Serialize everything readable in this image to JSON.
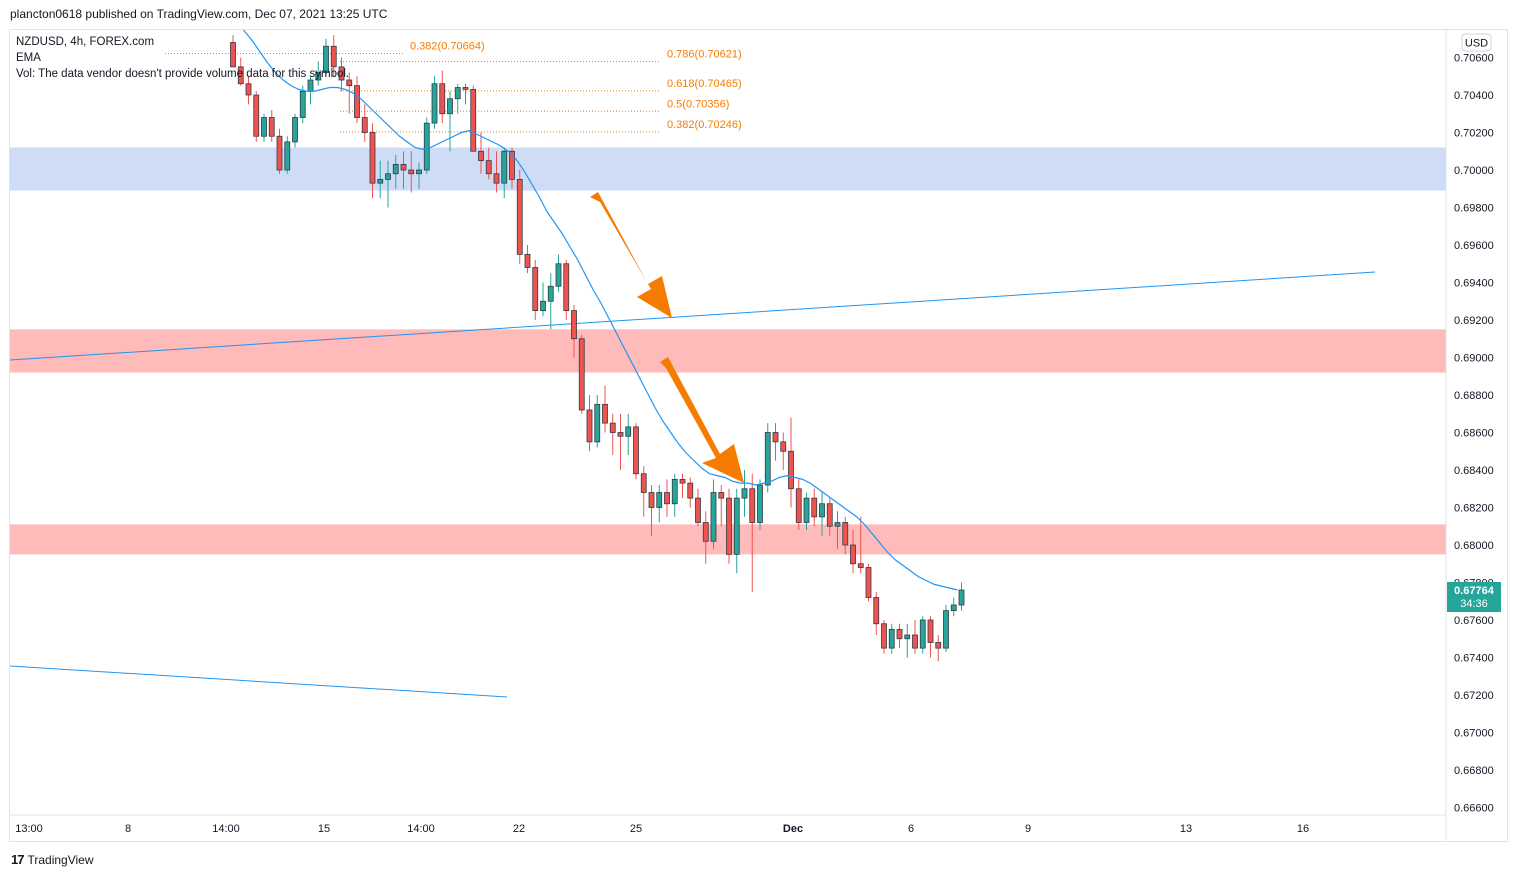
{
  "header": {
    "publish_text": "plancton0618 published on TradingView.com, Dec 07, 2021 13:25 UTC"
  },
  "legend": {
    "symbol": "NZDUSD, 4h, FOREX.com",
    "ema": "EMA",
    "vol": "Vol: The data vendor doesn't provide volume data for this symbol."
  },
  "footer": {
    "brand": "TradingView",
    "logo_glyph": "17"
  },
  "colors": {
    "bull": "#26a69a",
    "bear": "#ef5350",
    "candle_border_dark": "#363a45",
    "ema": "#2196f3",
    "fib": "#f57c00",
    "arrow": "#f57c00",
    "zone_blue": "#cfdcf6",
    "zone_red": "#ffbaba",
    "last_price_bg": "#26a69a"
  },
  "chart_data": {
    "type": "candlestick",
    "symbol": "NZDUSD",
    "timeframe": "4h",
    "currency": "USD",
    "ylim": [
      0.6655,
      0.708
    ],
    "y_ticks": [
      "0.70600",
      "0.70400",
      "0.70200",
      "0.70000",
      "0.69800",
      "0.69600",
      "0.69400",
      "0.69200",
      "0.69000",
      "0.68800",
      "0.68600",
      "0.68400",
      "0.68200",
      "0.68000",
      "0.67800",
      "0.67600",
      "0.67400",
      "0.67200",
      "0.67000",
      "0.66800",
      "0.66600"
    ],
    "x_ticks": [
      "13:00",
      "8",
      "14:00",
      "15",
      "14:00",
      "22",
      "25",
      "Dec",
      "6",
      "9",
      "13",
      "16"
    ],
    "last_price": "0.67764",
    "countdown": "34:36",
    "zones": [
      {
        "color": "blue",
        "from": 0.6989,
        "to": 0.7012
      },
      {
        "color": "red",
        "from": 0.6892,
        "to": 0.6915
      },
      {
        "color": "red",
        "from": 0.6795,
        "to": 0.6811
      }
    ],
    "fib_labels": [
      {
        "label": "0.382(0.70664)",
        "value": 0.70664
      },
      {
        "label": "0.786(0.70621)",
        "value": 0.70621
      },
      {
        "label": "0.618(0.70465)",
        "value": 0.70465
      },
      {
        "label": "0.5(0.70356)",
        "value": 0.70356
      },
      {
        "label": "0.382(0.70246)",
        "value": 0.70246
      }
    ],
    "candles": [
      [
        0.7068,
        0.7072,
        0.7055,
        0.7055
      ],
      [
        0.7055,
        0.706,
        0.7045,
        0.7046
      ],
      [
        0.7046,
        0.705,
        0.7035,
        0.704
      ],
      [
        0.704,
        0.7042,
        0.7015,
        0.7018
      ],
      [
        0.7018,
        0.703,
        0.7015,
        0.7028
      ],
      [
        0.7028,
        0.7032,
        0.7015,
        0.7018
      ],
      [
        0.7018,
        0.7022,
        0.6998,
        0.7
      ],
      [
        0.7,
        0.7018,
        0.6998,
        0.7015
      ],
      [
        0.7015,
        0.703,
        0.7012,
        0.7028
      ],
      [
        0.7028,
        0.7045,
        0.7025,
        0.7042
      ],
      [
        0.7042,
        0.705,
        0.7035,
        0.7048
      ],
      [
        0.7048,
        0.7058,
        0.7045,
        0.7052
      ],
      [
        0.7052,
        0.707,
        0.705,
        0.7066
      ],
      [
        0.7066,
        0.7072,
        0.705,
        0.7055
      ],
      [
        0.7055,
        0.706,
        0.7042,
        0.7048
      ],
      [
        0.7048,
        0.7052,
        0.703,
        0.7045
      ],
      [
        0.7045,
        0.705,
        0.7025,
        0.7028
      ],
      [
        0.7028,
        0.7035,
        0.7015,
        0.702
      ],
      [
        0.702,
        0.7025,
        0.6985,
        0.6993
      ],
      [
        0.6993,
        0.7005,
        0.6985,
        0.6995
      ],
      [
        0.6995,
        0.7005,
        0.698,
        0.6998
      ],
      [
        0.6998,
        0.7008,
        0.699,
        0.7003
      ],
      [
        0.7003,
        0.701,
        0.699,
        0.7
      ],
      [
        0.7,
        0.701,
        0.6988,
        0.6998
      ],
      [
        0.6998,
        0.7004,
        0.699,
        0.7
      ],
      [
        0.7,
        0.7028,
        0.6998,
        0.7025
      ],
      [
        0.7025,
        0.705,
        0.7022,
        0.7046
      ],
      [
        0.7046,
        0.7053,
        0.7025,
        0.703
      ],
      [
        0.703,
        0.7042,
        0.701,
        0.7038
      ],
      [
        0.7038,
        0.7046,
        0.703,
        0.7044
      ],
      [
        0.7044,
        0.7046,
        0.7035,
        0.7043
      ],
      [
        0.7043,
        0.7045,
        0.701,
        0.701
      ],
      [
        0.701,
        0.702,
        0.6998,
        0.7005
      ],
      [
        0.7005,
        0.7012,
        0.6995,
        0.6998
      ],
      [
        0.6998,
        0.701,
        0.6988,
        0.6993
      ],
      [
        0.6993,
        0.7012,
        0.6985,
        0.701
      ],
      [
        0.701,
        0.7012,
        0.699,
        0.6995
      ],
      [
        0.6995,
        0.7,
        0.695,
        0.6955
      ],
      [
        0.6955,
        0.696,
        0.6945,
        0.6948
      ],
      [
        0.6948,
        0.6952,
        0.692,
        0.6925
      ],
      [
        0.6925,
        0.694,
        0.6922,
        0.693
      ],
      [
        0.693,
        0.6945,
        0.6915,
        0.6938
      ],
      [
        0.6938,
        0.6955,
        0.6935,
        0.695
      ],
      [
        0.695,
        0.6952,
        0.692,
        0.6925
      ],
      [
        0.6925,
        0.6928,
        0.69,
        0.691
      ],
      [
        0.691,
        0.6912,
        0.687,
        0.6872
      ],
      [
        0.6872,
        0.688,
        0.685,
        0.6855
      ],
      [
        0.6855,
        0.688,
        0.6852,
        0.6875
      ],
      [
        0.6875,
        0.6885,
        0.686,
        0.6865
      ],
      [
        0.6865,
        0.687,
        0.6848,
        0.686
      ],
      [
        0.686,
        0.687,
        0.684,
        0.6858
      ],
      [
        0.6858,
        0.687,
        0.6848,
        0.6863
      ],
      [
        0.6863,
        0.6865,
        0.6835,
        0.6838
      ],
      [
        0.6838,
        0.6842,
        0.6815,
        0.6828
      ],
      [
        0.6828,
        0.6832,
        0.6805,
        0.682
      ],
      [
        0.682,
        0.6832,
        0.6812,
        0.6828
      ],
      [
        0.6828,
        0.6835,
        0.6815,
        0.6822
      ],
      [
        0.6822,
        0.6838,
        0.6815,
        0.6835
      ],
      [
        0.6835,
        0.6838,
        0.6825,
        0.6833
      ],
      [
        0.6833,
        0.6836,
        0.682,
        0.6825
      ],
      [
        0.6825,
        0.683,
        0.681,
        0.6812
      ],
      [
        0.6812,
        0.6818,
        0.679,
        0.6802
      ],
      [
        0.6802,
        0.6835,
        0.6798,
        0.6828
      ],
      [
        0.6828,
        0.6832,
        0.681,
        0.6825
      ],
      [
        0.6825,
        0.683,
        0.679,
        0.6795
      ],
      [
        0.6795,
        0.683,
        0.6785,
        0.6825
      ],
      [
        0.6825,
        0.684,
        0.6815,
        0.683
      ],
      [
        0.683,
        0.6838,
        0.6775,
        0.6812
      ],
      [
        0.6812,
        0.6835,
        0.6808,
        0.6832
      ],
      [
        0.6832,
        0.6865,
        0.6828,
        0.686
      ],
      [
        0.686,
        0.6865,
        0.6845,
        0.6855
      ],
      [
        0.6855,
        0.686,
        0.684,
        0.685
      ],
      [
        0.685,
        0.6868,
        0.682,
        0.683
      ],
      [
        0.683,
        0.6835,
        0.6808,
        0.6812
      ],
      [
        0.6812,
        0.6828,
        0.6808,
        0.6825
      ],
      [
        0.6825,
        0.683,
        0.681,
        0.6815
      ],
      [
        0.6815,
        0.6828,
        0.6805,
        0.6822
      ],
      [
        0.6822,
        0.6825,
        0.6805,
        0.681
      ],
      [
        0.681,
        0.6818,
        0.6798,
        0.6812
      ],
      [
        0.6812,
        0.6815,
        0.6795,
        0.68
      ],
      [
        0.68,
        0.6808,
        0.6785,
        0.679
      ],
      [
        0.679,
        0.6815,
        0.6785,
        0.6788
      ],
      [
        0.6788,
        0.679,
        0.677,
        0.6772
      ],
      [
        0.6772,
        0.6775,
        0.6752,
        0.6758
      ],
      [
        0.6758,
        0.676,
        0.6742,
        0.6745
      ],
      [
        0.6745,
        0.6758,
        0.6742,
        0.6755
      ],
      [
        0.6755,
        0.6758,
        0.6745,
        0.675
      ],
      [
        0.675,
        0.6758,
        0.674,
        0.6752
      ],
      [
        0.6752,
        0.676,
        0.6742,
        0.6745
      ],
      [
        0.6745,
        0.6762,
        0.6742,
        0.676
      ],
      [
        0.676,
        0.6762,
        0.674,
        0.6748
      ],
      [
        0.6748,
        0.6752,
        0.6738,
        0.6745
      ],
      [
        0.6745,
        0.6768,
        0.6743,
        0.6765
      ],
      [
        0.6765,
        0.6772,
        0.6762,
        0.6768
      ],
      [
        0.6768,
        0.678,
        0.6765,
        0.6776
      ]
    ],
    "ema_values": [
      0.7085,
      0.708,
      0.7074,
      0.7069,
      0.7063,
      0.7057,
      0.7052,
      0.7048,
      0.7045,
      0.7043,
      0.7042,
      0.7042,
      0.7043,
      0.7044,
      0.7044,
      0.7043,
      0.7041,
      0.7038,
      0.7034,
      0.703,
      0.7026,
      0.7022,
      0.7018,
      0.7015,
      0.7012,
      0.7011,
      0.7012,
      0.7014,
      0.7016,
      0.7018,
      0.702,
      0.7021,
      0.7019,
      0.7017,
      0.7015,
      0.7013,
      0.701,
      0.7006,
      0.7,
      0.6993,
      0.6986,
      0.6978,
      0.6972,
      0.6966,
      0.6959,
      0.6952,
      0.6944,
      0.6936,
      0.6929,
      0.6921,
      0.6913,
      0.6905,
      0.6897,
      0.6889,
      0.6881,
      0.6873,
      0.6866,
      0.686,
      0.6854,
      0.6849,
      0.6845,
      0.6841,
      0.6838,
      0.6837,
      0.6836,
      0.6834,
      0.6833,
      0.6833,
      0.6832,
      0.6833,
      0.6834,
      0.6836,
      0.6837,
      0.6836,
      0.6835,
      0.6833,
      0.683,
      0.6827,
      0.6824,
      0.6821,
      0.6818,
      0.6815,
      0.6811,
      0.6806,
      0.6801,
      0.6796,
      0.6792,
      0.6789,
      0.6786,
      0.6783,
      0.6781,
      0.6779,
      0.6778,
      0.6777,
      0.6776
    ]
  }
}
